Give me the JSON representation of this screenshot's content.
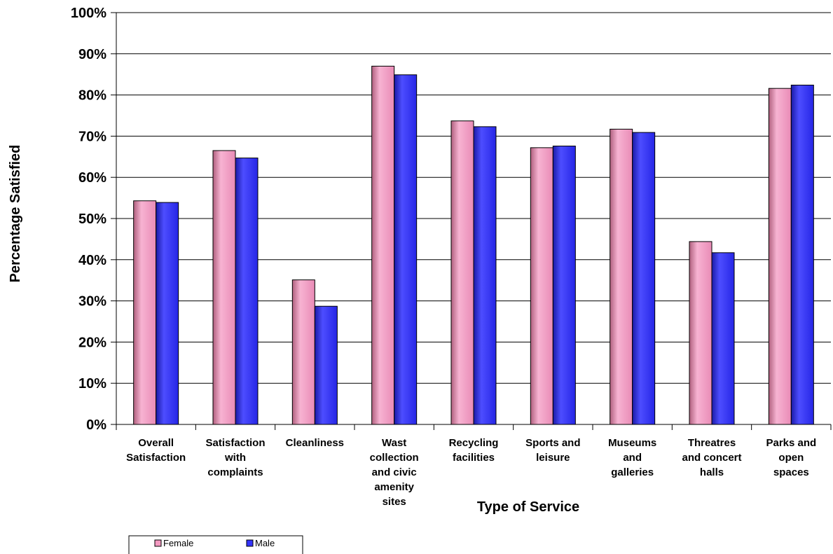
{
  "chart_data": {
    "type": "bar",
    "categories": [
      [
        "Overall",
        "Satisfaction"
      ],
      [
        "Satisfaction",
        "with",
        "complaints"
      ],
      [
        "Cleanliness"
      ],
      [
        "Wast",
        "collection",
        "and civic",
        "amenity",
        "sites"
      ],
      [
        "Recycling",
        "facilities"
      ],
      [
        "Sports and",
        "leisure"
      ],
      [
        "Museums",
        "and",
        "galleries"
      ],
      [
        "Threatres",
        "and concert",
        "halls"
      ],
      [
        "Parks and",
        "open",
        "spaces"
      ]
    ],
    "series": [
      {
        "name": "Female",
        "color": "#f49ac1",
        "values": [
          54.3,
          66.5,
          35.1,
          87.0,
          73.7,
          67.2,
          71.7,
          44.4,
          81.6
        ]
      },
      {
        "name": "Male",
        "color": "#3333ff",
        "values": [
          53.9,
          64.7,
          28.7,
          84.9,
          72.3,
          67.6,
          70.9,
          41.7,
          82.4
        ]
      }
    ],
    "ylim": [
      0,
      100
    ],
    "yticks": [
      "0%",
      "10%",
      "20%",
      "30%",
      "40%",
      "50%",
      "60%",
      "70%",
      "80%",
      "90%",
      "100%"
    ],
    "xlabel": "Type of Service",
    "ylabel": "Percentage Satisfied",
    "grid": true,
    "legend_position": "bottom-left"
  }
}
